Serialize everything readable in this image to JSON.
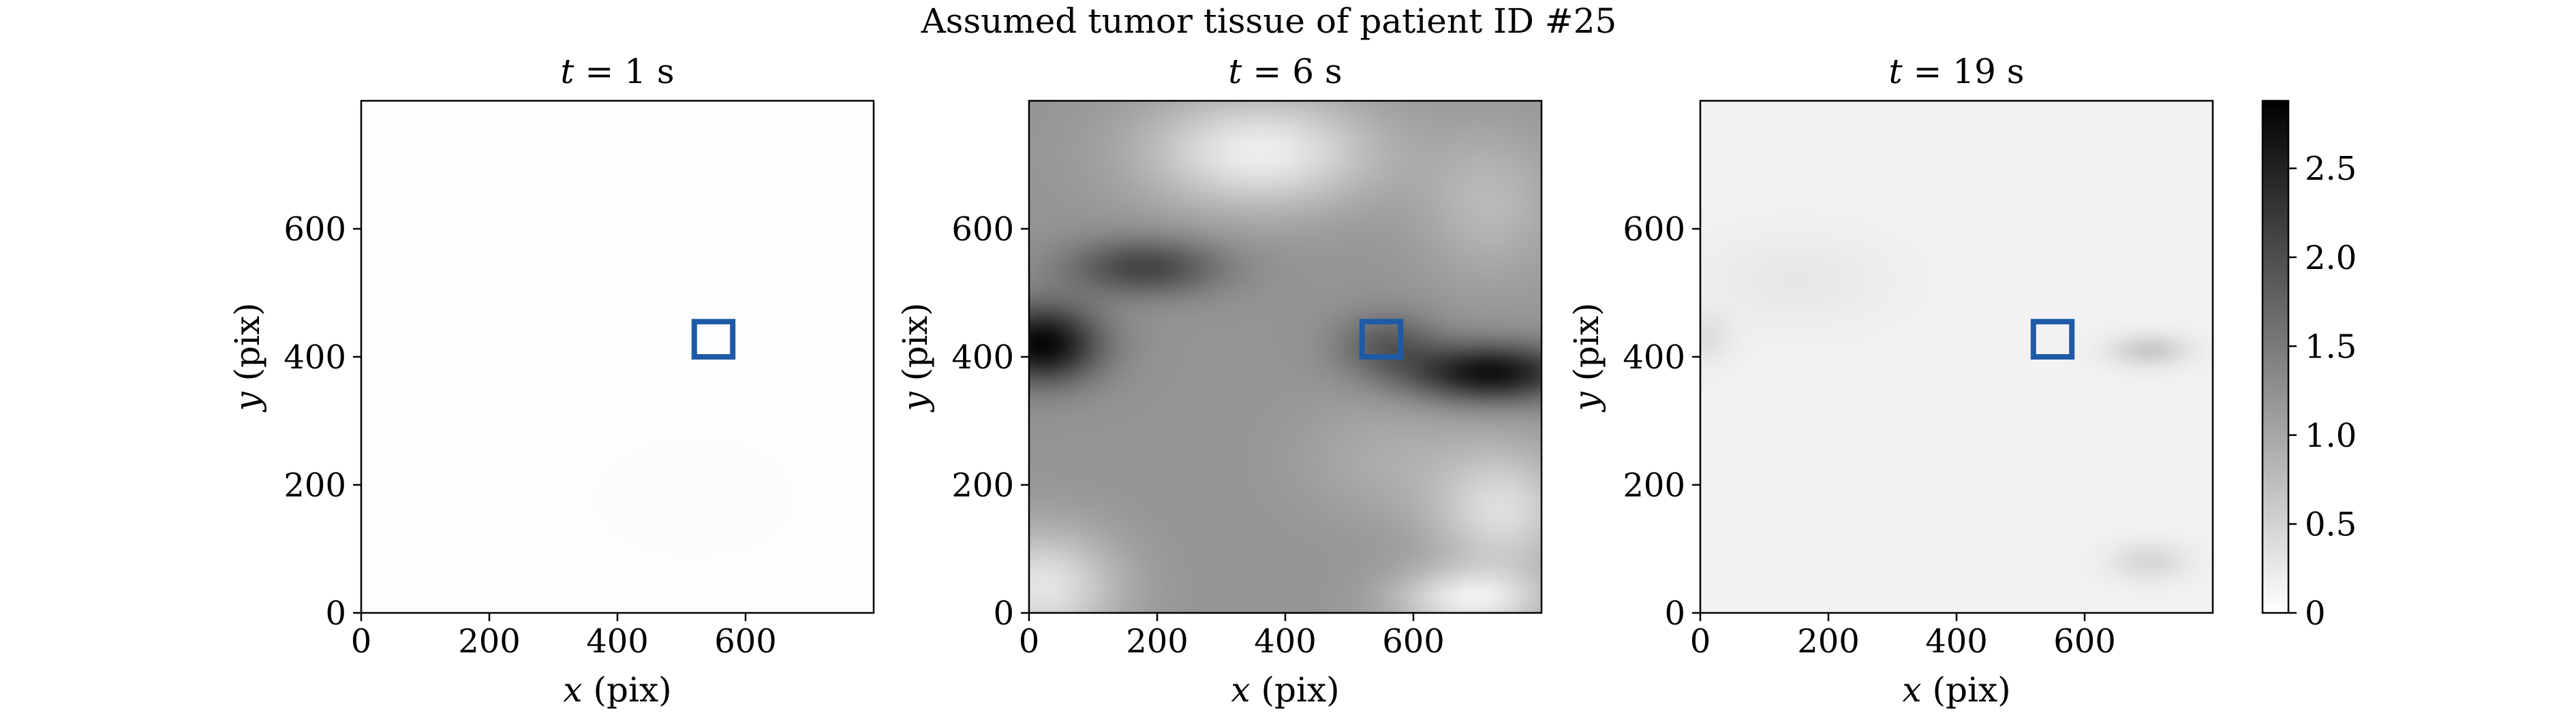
{
  "figure": {
    "suptitle": "Assumed tumor tissue of patient ID #25"
  },
  "chart_data": [
    {
      "type": "heatmap",
      "title": {
        "var": "t",
        "rest": " = 1 s"
      },
      "xlabel": {
        "var": "x",
        "rest": " (pix)"
      },
      "ylabel": {
        "var": "y",
        "rest": " (pix)"
      },
      "xlim": [
        0,
        800
      ],
      "ylim": [
        0,
        800
      ],
      "xticks": [
        0,
        200,
        400,
        600
      ],
      "yticks": [
        0,
        200,
        400,
        600
      ],
      "roi": {
        "x": [
          520,
          580
        ],
        "y": [
          400,
          455
        ],
        "color": "#1f5aa6"
      },
      "field": {
        "base": 0.02,
        "features": [
          {
            "cx": 520,
            "cy": 180,
            "sx": 200,
            "sy": 120,
            "value": 0.015
          }
        ]
      }
    },
    {
      "type": "heatmap",
      "title": {
        "var": "t",
        "rest": " = 6 s"
      },
      "xlabel": {
        "var": "x",
        "rest": " (pix)"
      },
      "ylabel": {
        "var": "y",
        "rest": " (pix)"
      },
      "xlim": [
        0,
        800
      ],
      "ylim": [
        0,
        800
      ],
      "xticks": [
        0,
        200,
        400,
        600
      ],
      "yticks": [
        0,
        200,
        400,
        600
      ],
      "roi": {
        "x": [
          520,
          580
        ],
        "y": [
          400,
          455
        ],
        "color": "#1f5aa6"
      },
      "field": {
        "base": 1.2,
        "features": [
          {
            "cx": 20,
            "cy": 420,
            "sx": 90,
            "sy": 60,
            "value": 1.6
          },
          {
            "cx": 180,
            "cy": 540,
            "sx": 120,
            "sy": 45,
            "value": 0.9
          },
          {
            "cx": 720,
            "cy": 375,
            "sx": 130,
            "sy": 45,
            "value": 1.5
          },
          {
            "cx": 560,
            "cy": 420,
            "sx": 80,
            "sy": 50,
            "value": 0.6
          },
          {
            "cx": 360,
            "cy": 720,
            "sx": 180,
            "sy": 90,
            "value": -1.0
          },
          {
            "cx": 560,
            "cy": 240,
            "sx": 140,
            "sy": 100,
            "value": -0.25
          },
          {
            "cx": 20,
            "cy": 40,
            "sx": 120,
            "sy": 90,
            "value": -0.9
          },
          {
            "cx": 740,
            "cy": 160,
            "sx": 110,
            "sy": 100,
            "value": -0.8
          },
          {
            "cx": 690,
            "cy": 20,
            "sx": 120,
            "sy": 50,
            "value": -0.95
          },
          {
            "cx": 720,
            "cy": 640,
            "sx": 110,
            "sy": 120,
            "value": -0.4
          }
        ]
      }
    },
    {
      "type": "heatmap",
      "title": {
        "var": "t",
        "rest": " = 19 s"
      },
      "xlabel": {
        "var": "x",
        "rest": " (pix)"
      },
      "ylabel": {
        "var": "y",
        "rest": " (pix)"
      },
      "xlim": [
        0,
        800
      ],
      "ylim": [
        0,
        800
      ],
      "xticks": [
        0,
        200,
        400,
        600
      ],
      "yticks": [
        0,
        200,
        400,
        600
      ],
      "roi": {
        "x": [
          520,
          580
        ],
        "y": [
          400,
          455
        ],
        "color": "#1f5aa6"
      },
      "field": {
        "base": 0.15,
        "features": [
          {
            "cx": 700,
            "cy": 410,
            "sx": 60,
            "sy": 25,
            "value": 0.45
          },
          {
            "cx": 700,
            "cy": 80,
            "sx": 60,
            "sy": 30,
            "value": 0.3
          },
          {
            "cx": 150,
            "cy": 520,
            "sx": 140,
            "sy": 70,
            "value": 0.12
          },
          {
            "cx": 10,
            "cy": 430,
            "sx": 40,
            "sy": 40,
            "value": 0.2
          }
        ]
      }
    }
  ],
  "colorbar": {
    "min": 0,
    "max": 2.88,
    "ticks": [
      0,
      0.5,
      1.0,
      1.5,
      2.0,
      2.5
    ],
    "tick_labels": [
      "0",
      "0.5",
      "1.0",
      "1.5",
      "2.0",
      "2.5"
    ],
    "cmap_low": "#ffffff",
    "cmap_high": "#000000"
  }
}
